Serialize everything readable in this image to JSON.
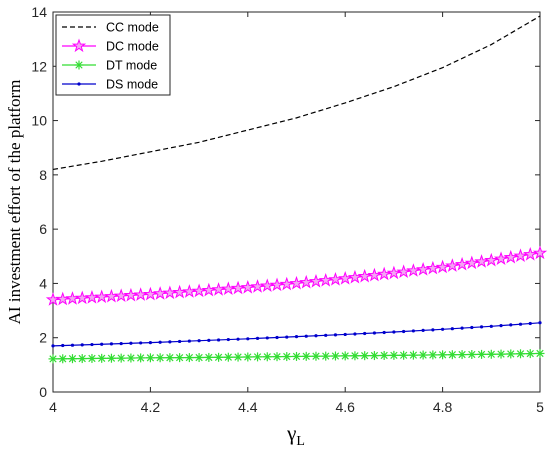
{
  "chart_data": {
    "type": "line",
    "xlabel": "γ",
    "xlabel_subscript": "L",
    "ylabel": "AI investment effort of the platform",
    "xlim": [
      4,
      5
    ],
    "ylim": [
      0,
      14
    ],
    "xticks": [
      "4",
      "4.2",
      "4.4",
      "4.6",
      "4.8",
      "5"
    ],
    "yticks": [
      "0",
      "2",
      "4",
      "6",
      "8",
      "10",
      "12",
      "14"
    ],
    "grid": false,
    "legend_position": "top-left",
    "x": [
      4.0,
      4.1,
      4.2,
      4.3,
      4.4,
      4.5,
      4.6,
      4.7,
      4.8,
      4.9,
      5.0
    ],
    "series": [
      {
        "name": "CC mode",
        "color": "#000000",
        "line_style": "dashed",
        "marker": "none",
        "values": [
          8.2,
          8.5,
          8.85,
          9.2,
          9.65,
          10.1,
          10.65,
          11.25,
          11.95,
          12.8,
          13.85
        ]
      },
      {
        "name": "DC mode",
        "color": "#ff00ff",
        "line_style": "solid",
        "marker": "pentagram",
        "values": [
          3.4,
          3.5,
          3.6,
          3.72,
          3.85,
          4.0,
          4.18,
          4.38,
          4.6,
          4.85,
          5.12
        ]
      },
      {
        "name": "DT mode",
        "color": "#33dd33",
        "line_style": "solid",
        "marker": "asterisk",
        "values": [
          1.22,
          1.24,
          1.26,
          1.27,
          1.29,
          1.31,
          1.33,
          1.35,
          1.37,
          1.39,
          1.42
        ]
      },
      {
        "name": "DS mode",
        "color": "#0000cc",
        "line_style": "solid",
        "marker": "dot",
        "values": [
          1.7,
          1.76,
          1.82,
          1.89,
          1.96,
          2.04,
          2.12,
          2.21,
          2.31,
          2.42,
          2.55
        ]
      }
    ]
  }
}
